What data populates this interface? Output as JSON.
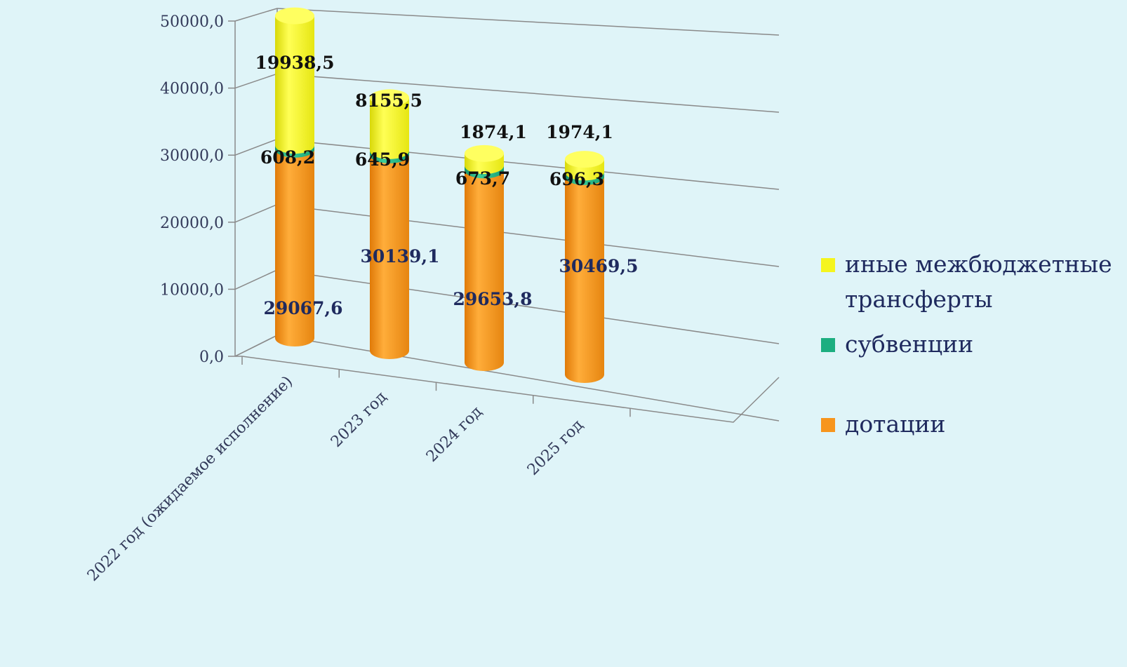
{
  "chart_data": {
    "type": "bar",
    "stacked": true,
    "categories": [
      "2022 год (ожидаемое исполнение)",
      "2023 год",
      "2024 год",
      "2025 год"
    ],
    "series": [
      {
        "name": "дотации",
        "values": [
          29067.6,
          30139.1,
          29653.8,
          30469.5
        ]
      },
      {
        "name": "субвенции",
        "values": [
          608.2,
          645.9,
          673.7,
          696.3
        ]
      },
      {
        "name": "иные межбюджетные трансферты",
        "values": [
          19938.5,
          8155.5,
          1874.1,
          1974.1
        ]
      }
    ],
    "value_labels": [
      [
        "29067,6",
        "30139,1",
        "29653,8",
        "30469,5"
      ],
      [
        "608,2",
        "645,9",
        "673,7",
        "696,3"
      ],
      [
        "19938,5",
        "8155,5",
        "1874,1",
        "1974,1"
      ]
    ],
    "y_ticks": [
      "0,0",
      "10000,0",
      "20000,0",
      "30000,0",
      "40000,0",
      "50000,0"
    ],
    "ylim": [
      0,
      50000
    ],
    "grid": true,
    "legend_position": "right",
    "legend": [
      {
        "label_line1": "иные межбюджетные",
        "label_line2": "трансферты"
      },
      {
        "label_line1": "субвенции",
        "label_line2": ""
      },
      {
        "label_line1": "дотации",
        "label_line2": ""
      }
    ],
    "colors": {
      "дотации": "#f7951d",
      "субвенции": "#1cae80",
      "иные межбюджетные трансферты": "#f5f51e",
      "background": "#dff4f8",
      "axis": "#8a8a8a"
    }
  }
}
